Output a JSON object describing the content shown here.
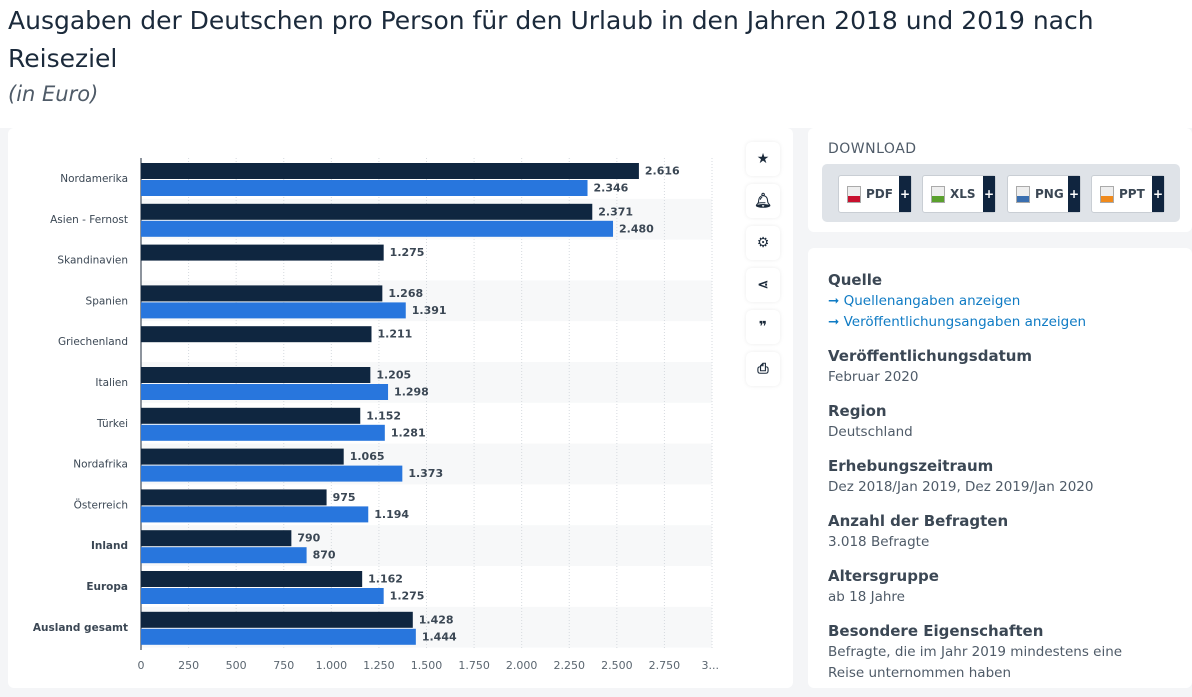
{
  "title": "Ausgaben der Deutschen pro Person für den Urlaub in den Jahren 2018 und 2019 nach Reiseziel",
  "subtitle": "(in Euro)",
  "toolbar": {
    "icons": [
      "star-icon",
      "bell-icon",
      "gear-icon",
      "share-icon",
      "quote-icon",
      "print-icon"
    ]
  },
  "download": {
    "title": "DOWNLOAD",
    "buttons": [
      {
        "label": "PDF",
        "color": "#c8102e"
      },
      {
        "label": "XLS",
        "color": "#5aa02c"
      },
      {
        "label": "PNG",
        "color": "#3a6fb0"
      },
      {
        "label": "PPT",
        "color": "#f08a1c"
      }
    ],
    "plus": "+"
  },
  "info": {
    "source_label": "Quelle",
    "source_link1": "Quellenangaben anzeigen",
    "source_link2": "Veröffentlichungsangaben anzeigen",
    "date_label": "Veröffentlichungsdatum",
    "date": "Februar 2020",
    "region_label": "Region",
    "region": "Deutschland",
    "period_label": "Erhebungszeitraum",
    "period": "Dez 2018/Jan 2019, Dez 2019/Jan 2020",
    "respondents_label": "Anzahl der Befragten",
    "respondents": "3.018 Befragte",
    "age_label": "Altersgruppe",
    "age": "ab 18 Jahre",
    "special_label": "Besondere Eigenschaften",
    "special": "Befragte, die im Jahr 2019 mindestens eine Reise unternommen haben"
  },
  "chart_data": {
    "type": "bar",
    "orientation": "horizontal",
    "categories": [
      "Nordamerika",
      "Asien - Fernost",
      "Skandinavien",
      "Spanien",
      "Griechenland",
      "Italien",
      "Türkei",
      "Nordafrika",
      "Österreich",
      "Inland",
      "Europa",
      "Ausland gesamt"
    ],
    "series": [
      {
        "color": "#0f2640",
        "values": [
          2616,
          2371,
          1275,
          1268,
          1211,
          1205,
          1152,
          1065,
          975,
          790,
          1162,
          1428
        ]
      },
      {
        "color": "#2876dd",
        "values": [
          2346,
          2480,
          null,
          1391,
          null,
          1298,
          1281,
          1373,
          1194,
          870,
          1275,
          1444
        ]
      }
    ],
    "xlim": [
      0,
      3000
    ],
    "xticks": [
      "0",
      "250",
      "500",
      "750",
      "1.000",
      "1.250",
      "1.500",
      "1.750",
      "2.000",
      "2.250",
      "2.500",
      "2.750",
      "3...."
    ],
    "grid": true,
    "legend": "none"
  }
}
